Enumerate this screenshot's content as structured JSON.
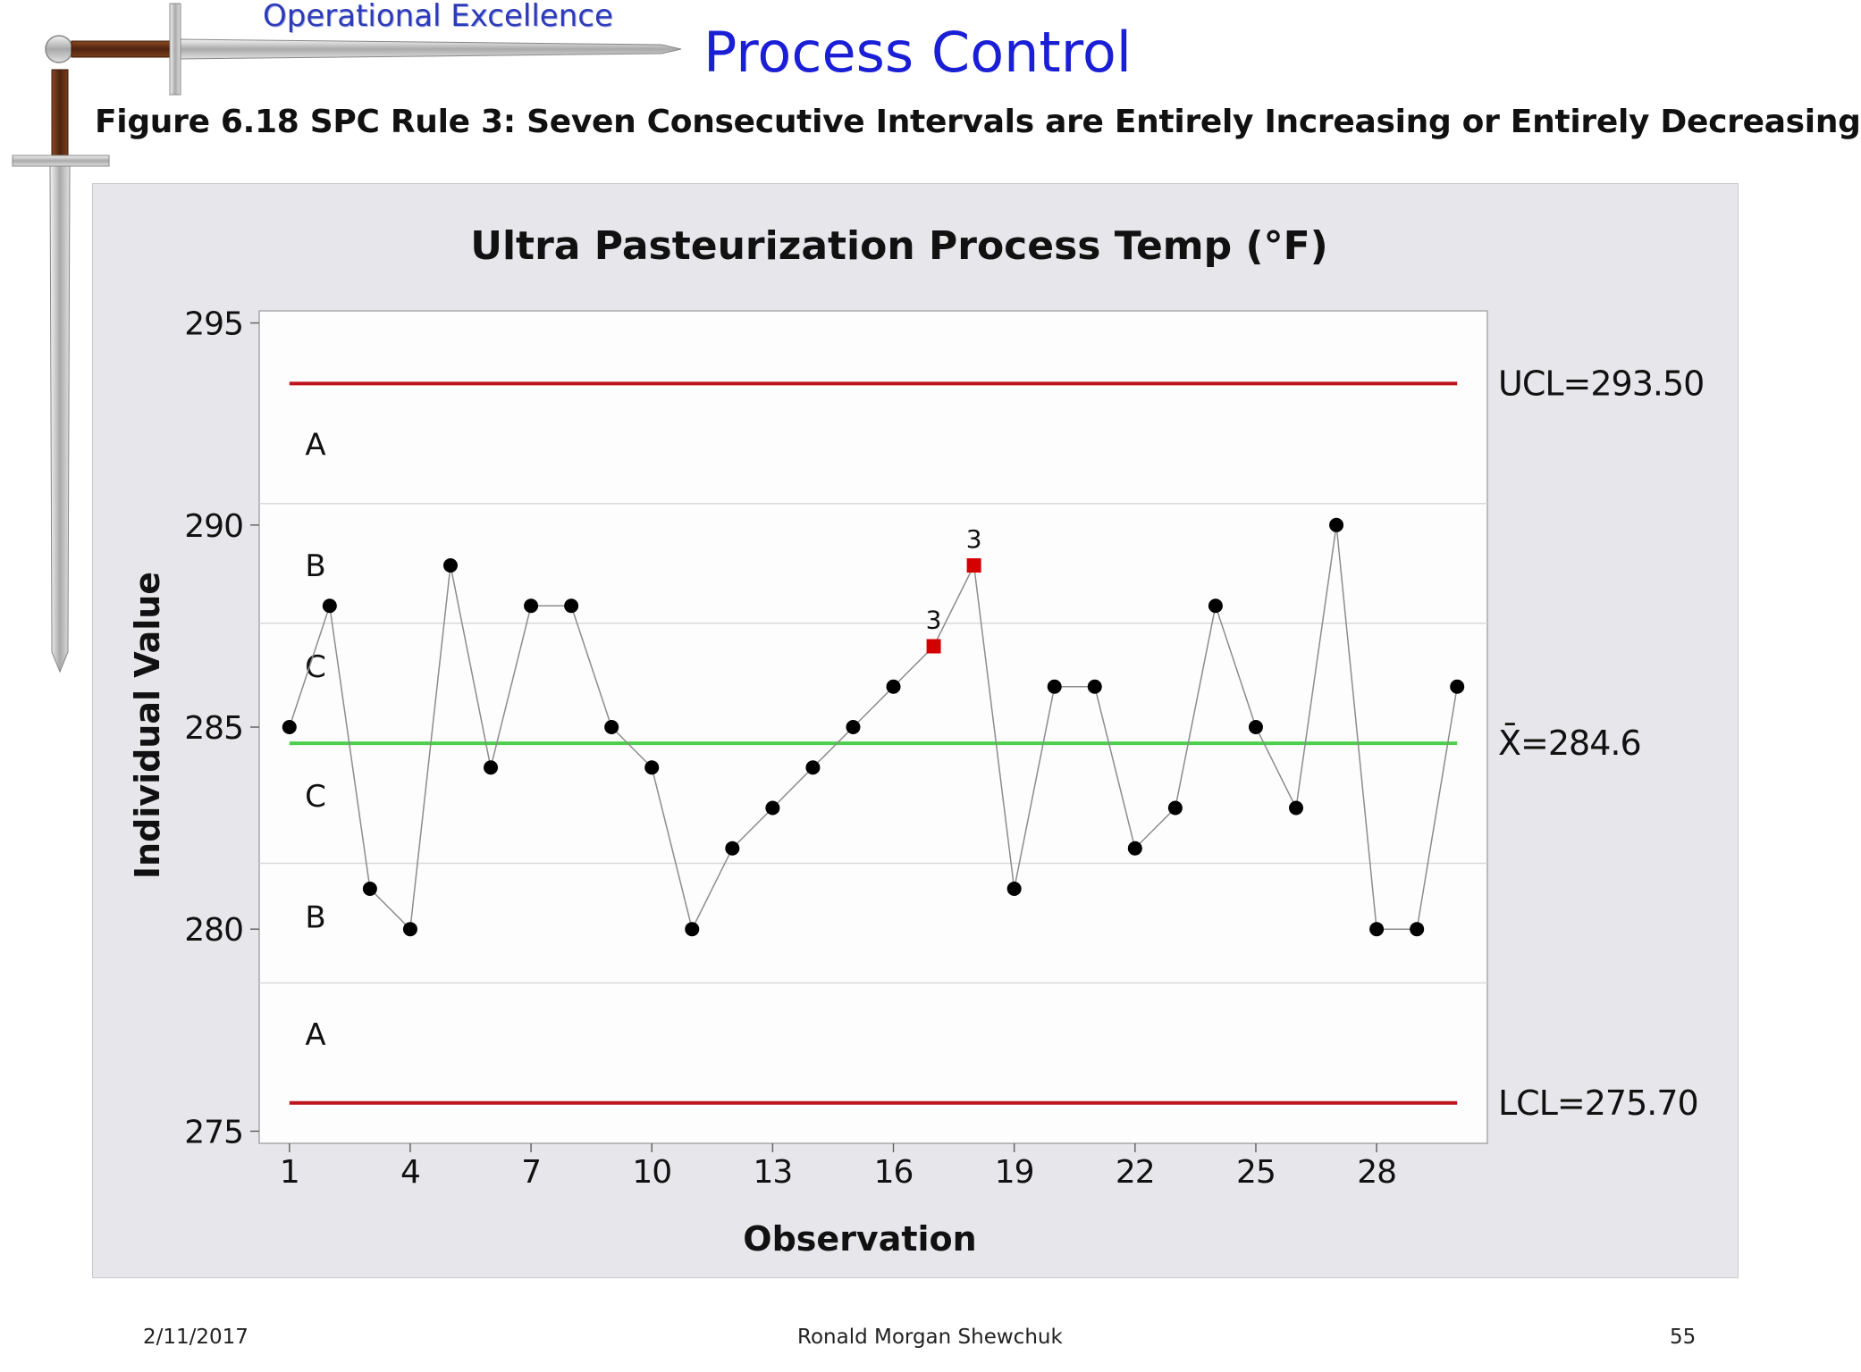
{
  "header": {
    "subtitle": "Operational Excellence",
    "title": "Process Control"
  },
  "figure_caption": "Figure 6.18  SPC Rule 3:  Seven Consecutive Intervals are Entirely Increasing or Entirely Decreasing",
  "icons": {
    "logo": "sword-icon"
  },
  "chart_data": {
    "type": "line",
    "title": "Ultra Pasteurization Process Temp (°F)",
    "xlabel": "Observation",
    "ylabel": "Individual Value",
    "x": [
      1,
      2,
      3,
      4,
      5,
      6,
      7,
      8,
      9,
      10,
      11,
      12,
      13,
      14,
      15,
      16,
      17,
      18,
      19,
      20,
      21,
      22,
      23,
      24,
      25,
      26,
      27,
      28,
      29,
      30
    ],
    "values": [
      285,
      288,
      281,
      280,
      289,
      284,
      288,
      288,
      285,
      284,
      280,
      282,
      283,
      284,
      285,
      286,
      287,
      289,
      281,
      286,
      286,
      282,
      283,
      288,
      285,
      283,
      290,
      280,
      280,
      286
    ],
    "flagged_points": [
      {
        "x": 17,
        "y": 287,
        "label": "3"
      },
      {
        "x": 18,
        "y": 289,
        "label": "3"
      }
    ],
    "xticks": [
      1,
      4,
      7,
      10,
      13,
      16,
      19,
      22,
      25,
      28
    ],
    "yticks": [
      275,
      280,
      285,
      290,
      295
    ],
    "ylim": [
      274.7,
      295.3
    ],
    "xlim": [
      0.25,
      30.75
    ],
    "control_lines": {
      "ucl": {
        "value": 293.5,
        "label": "UCL=293.50",
        "color": "#c0141c"
      },
      "center": {
        "value": 284.6,
        "label": "X̄=284.6",
        "color": "#4ccf4c"
      },
      "lcl": {
        "value": 275.7,
        "label": "LCL=275.70",
        "color": "#c0141c"
      }
    },
    "zone_boundaries": [
      290.53,
      287.57,
      281.63,
      278.67
    ],
    "zone_labels": [
      {
        "label": "A",
        "y": 292.0
      },
      {
        "label": "B",
        "y": 289.0
      },
      {
        "label": "C",
        "y": 286.5
      },
      {
        "label": "C",
        "y": 283.3
      },
      {
        "label": "B",
        "y": 280.3
      },
      {
        "label": "A",
        "y": 277.4
      }
    ],
    "grid": false,
    "colors": {
      "points": "#000000",
      "flagged": "#d40000",
      "line": "#8c8c8c"
    }
  },
  "footer": {
    "date": "2/11/2017",
    "author": "Ronald Morgan Shewchuk",
    "page": "55"
  }
}
